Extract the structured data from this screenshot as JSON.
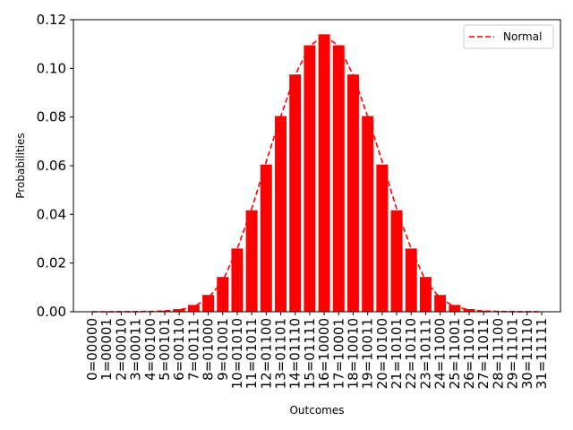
{
  "chart_data": {
    "type": "bar",
    "xlabel": "Outcomes",
    "ylabel": "Probabilities",
    "ylim": [
      0,
      0.12
    ],
    "yticks": [
      "0.00",
      "0.02",
      "0.04",
      "0.06",
      "0.08",
      "0.10",
      "0.12"
    ],
    "grid": false,
    "legend_position": "top-right",
    "categories": [
      "0=00000",
      "1=00001",
      "2=00010",
      "3=00011",
      "4=00100",
      "5=00101",
      "6=00110",
      "7=00111",
      "8=01000",
      "9=01001",
      "10=01010",
      "11=01011",
      "12=01100",
      "13=01101",
      "14=01110",
      "15=01111",
      "16=10000",
      "17=10001",
      "18=10010",
      "19=10011",
      "20=10100",
      "21=10101",
      "22=10110",
      "23=10111",
      "24=11000",
      "25=11001",
      "26=11010",
      "27=11011",
      "28=11100",
      "29=11101",
      "30=11110",
      "31=11111"
    ],
    "series": [
      {
        "type": "bar",
        "color": "#ff0000",
        "values": [
          1e-05,
          2e-05,
          5e-05,
          0.0001,
          0.0002,
          0.0004,
          0.0011,
          0.0028,
          0.0069,
          0.0143,
          0.026,
          0.0417,
          0.0605,
          0.0804,
          0.0975,
          0.1095,
          0.114,
          0.1095,
          0.0975,
          0.0804,
          0.0605,
          0.0417,
          0.026,
          0.0143,
          0.0069,
          0.0028,
          0.0011,
          0.0004,
          0.0002,
          0.0001,
          5e-05,
          2e-05
        ]
      },
      {
        "type": "line",
        "name": "Normal",
        "style": "dashed",
        "color": "#ff0000",
        "values": [
          0.0,
          0.0,
          1e-05,
          4e-05,
          0.00012,
          0.00033,
          0.00082,
          0.00202,
          0.00561,
          0.01259,
          0.02586,
          0.04227,
          0.06166,
          0.08027,
          0.09727,
          0.10915,
          0.11365,
          0.10915,
          0.09727,
          0.08027,
          0.06166,
          0.04227,
          0.02586,
          0.01259,
          0.00561,
          0.00202,
          0.00082,
          0.00033,
          0.00012,
          4e-05,
          1e-05,
          0.0
        ]
      }
    ]
  }
}
